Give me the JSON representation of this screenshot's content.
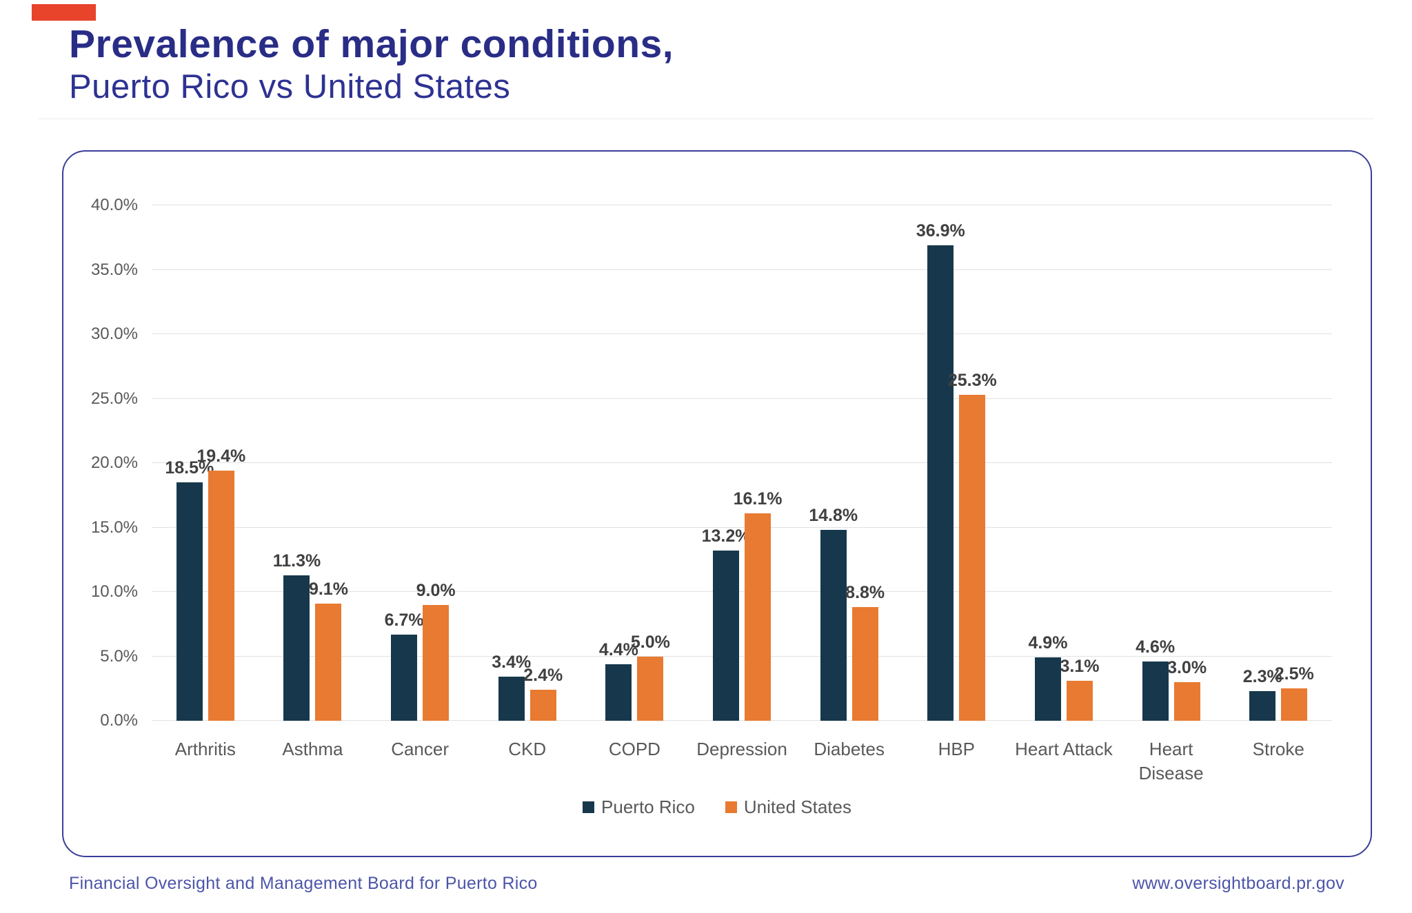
{
  "accent": {
    "color": "#E8432B"
  },
  "header": {
    "title": "Prevalence of major conditions,",
    "subtitle": "Puerto Rico vs United States"
  },
  "chart_data": {
    "type": "bar",
    "categories": [
      "Arthritis",
      "Asthma",
      "Cancer",
      "CKD",
      "COPD",
      "Depression",
      "Diabetes",
      "HBP",
      "Heart Attack",
      "Heart Disease",
      "Stroke"
    ],
    "series": [
      {
        "name": "Puerto Rico",
        "color": "#17384C",
        "values": [
          18.5,
          11.3,
          6.7,
          3.4,
          4.4,
          13.2,
          14.8,
          36.9,
          4.9,
          4.6,
          2.3
        ]
      },
      {
        "name": "United States",
        "color": "#E87A31",
        "values": [
          19.4,
          9.1,
          9.0,
          2.4,
          5.0,
          16.1,
          8.8,
          25.3,
          3.1,
          3.0,
          2.5
        ]
      }
    ],
    "title": "Prevalence of major conditions, Puerto Rico vs United States",
    "xlabel": "",
    "ylabel": "",
    "ylim": [
      0,
      40
    ],
    "ytick_step": 5,
    "yticks": [
      "0.0%",
      "5.0%",
      "10.0%",
      "15.0%",
      "20.0%",
      "25.0%",
      "30.0%",
      "35.0%",
      "40.0%"
    ],
    "data_label_suffix": "%",
    "grid": true,
    "legend_position": "bottom"
  },
  "footer": {
    "left": "Financial Oversight and Management Board for Puerto Rico",
    "right": "www.oversightboard.pr.gov"
  }
}
